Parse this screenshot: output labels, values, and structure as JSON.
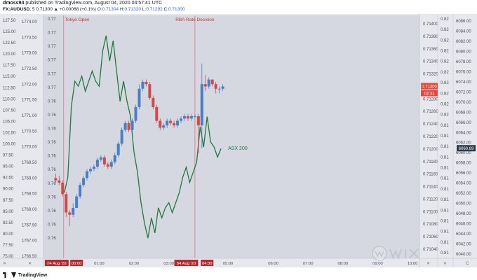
{
  "header": {
    "author": "dmoss94",
    "published_text": "published on TradingView.com, August 04, 2020 04:57:41 UTC",
    "symbol": "FX:AUDUSD",
    "interval": "5",
    "last": "0.71300",
    "change": "+0.00068 (+0.1%)",
    "o_label": "O:",
    "o_value": "0.71304",
    "h_label": "H:",
    "h_value": "0.71320",
    "l_label": "L:",
    "l_value": "0.71292",
    "c_label": "C:",
    "c_value": "0.71300"
  },
  "footer": {
    "logo_text": "TradingView"
  },
  "colors": {
    "plot_bg": "#d5d8e1",
    "axis_bg": "#e6e8ee",
    "up": "#4a7fc6",
    "down": "#cf4a4a",
    "asx_line": "#217a3a",
    "yen_line": "#1e8b3c",
    "event_line": "#e06a6a",
    "price_tag": "#e8473a",
    "asx_tag": "#2b3a4a"
  },
  "chart_data": {
    "type": "line",
    "title": "",
    "x_tick_labels": [
      "04 Aug '20",
      "00:00",
      "01:00",
      "02:00",
      "03:00",
      "04 Aug '20",
      "04:30",
      "05:00",
      "06:00",
      "07:00",
      "08:00",
      "09:00",
      "10:00"
    ],
    "event_labels": [
      "Tokyo Open",
      "RBA Rate Decision"
    ],
    "series_labels": [
      "ASX 200"
    ],
    "axes": {
      "far_left": {
        "ticks": [
          "127.50",
          "125.00",
          "122.50",
          "120.00",
          "117.50",
          "115.00",
          "112.50",
          "110.00",
          "107.50",
          "105.00",
          "102.50",
          "100.00",
          "97.50",
          "95.00",
          "92.50",
          "90.00",
          "87.50",
          "85.00",
          "82.50",
          "80.00",
          "77.50",
          "75.00"
        ],
        "range": [
          75.0,
          128.0
        ]
      },
      "left": {
        "ticks": [
          "1774.00",
          "1773.50",
          "1773.00",
          "1772.50",
          "1772.00",
          "1771.50",
          "1771.00",
          "1770.50",
          "1770.00",
          "1769.50",
          "1769.00",
          "1768.50",
          "1768.00",
          "1767.50",
          "1767.00",
          "1766.50"
        ],
        "range": [
          1766.3,
          1774.1
        ]
      },
      "inner": {
        "ticks": [
          "0.77",
          "0.77",
          "0.77",
          "0.77",
          "0.77",
          "0.77",
          "0.76",
          "0.76",
          "0.76",
          "0.76",
          "0.76",
          "0.76",
          "0.76",
          "0.76",
          "0.76",
          "0.76",
          "0.76"
        ]
      },
      "audusd": {
        "ticks": [
          "0.71400",
          "0.71380",
          "0.71360",
          "0.71340",
          "0.71320",
          "0.71300",
          "0.71280",
          "0.71260",
          "0.71240",
          "0.71220",
          "0.71200",
          "0.71180",
          "0.71160",
          "0.71140",
          "0.71120",
          "0.71100",
          "0.71080",
          "0.71060",
          "0.71040"
        ],
        "range": [
          0.7103,
          0.7141
        ],
        "last_tag": "0.71300",
        "countdown_tag": "02:31"
      },
      "mid": {
        "ticks": [
          "0.82",
          "0.82",
          "0.82",
          "0.82",
          "0.82",
          "0.82",
          "0.82",
          "0.82",
          "0.82",
          "0.82",
          "0.81",
          "0.81",
          "0.81",
          "0.81",
          "0.81",
          "0.81",
          "0.81",
          "0.81",
          "0.81",
          "0.81",
          "0.81",
          "0.81",
          "0.81"
        ]
      },
      "asx": {
        "ticks": [
          "6086.00",
          "6084.00",
          "6082.00",
          "6080.00",
          "6078.00",
          "6076.00",
          "6074.00",
          "6072.00",
          "6070.00",
          "6068.00",
          "6066.00",
          "6064.00",
          "6062.00",
          "6060.00",
          "6058.00",
          "6056.00",
          "6054.00",
          "6052.00",
          "6050.00",
          "6048.00",
          "6046.00",
          "6044.00",
          "6042.00",
          "6040.00"
        ],
        "range": [
          6039.0,
          6087.0
        ],
        "last_tag": "6060.69"
      }
    },
    "asx200": {
      "name": "ASX 200",
      "x_hours": [
        0.0,
        0.1,
        0.2,
        0.3,
        0.4,
        0.5,
        0.6,
        0.7,
        0.8,
        0.9,
        1.0,
        1.1,
        1.2,
        1.3,
        1.4,
        1.5,
        1.6,
        1.7,
        1.8,
        1.9,
        2.0,
        2.1,
        2.2,
        2.3,
        2.4,
        2.5,
        2.6,
        2.7,
        2.8,
        2.9,
        3.0,
        3.1,
        3.2,
        3.3,
        3.4,
        3.5,
        3.6,
        3.7,
        3.8,
        3.9,
        4.0,
        4.1,
        4.2,
        4.3,
        4.4,
        4.5
      ],
      "values": [
        6052,
        6055,
        6069,
        6074,
        6073,
        6075,
        6072,
        6074,
        6076,
        6074,
        6073,
        6080,
        6083,
        6078,
        6082,
        6076,
        6070,
        6074,
        6070,
        6067,
        6060,
        6056,
        6050,
        6046,
        6043,
        6047,
        6044,
        6049,
        6047,
        6049,
        6050,
        6048,
        6050,
        6052,
        6055,
        6057,
        6054,
        6056,
        6058,
        6065,
        6061,
        6067,
        6062,
        6061,
        6059,
        6060.69
      ]
    },
    "usdjpy_left_scale": {
      "x_hours": [
        -0.25,
        -0.15,
        -0.05,
        0.05,
        0.15,
        0.25,
        0.35,
        0.45,
        0.55,
        0.65,
        0.75,
        0.85,
        0.95,
        1.05,
        1.15,
        1.25,
        1.35,
        1.45,
        1.55,
        1.65,
        1.75,
        1.85,
        1.95,
        2.05,
        2.15,
        2.25,
        2.35,
        2.45,
        2.55,
        2.65,
        2.75,
        2.85,
        2.95,
        3.05,
        3.15,
        3.25,
        3.35,
        3.45,
        3.55,
        3.65,
        3.75,
        3.85,
        3.95,
        4.05,
        4.15,
        4.25,
        4.35,
        4.45,
        4.55
      ],
      "open": [
        92.5,
        92.0,
        91.5,
        89.0,
        85.0,
        84.5,
        86.0,
        88.5,
        91.0,
        92.5,
        94.0,
        94.5,
        95.0,
        96.5,
        97.0,
        95.5,
        95.0,
        96.0,
        97.5,
        100.0,
        103.0,
        104.5,
        103.0,
        105.0,
        108.0,
        112.0,
        113.5,
        113.0,
        110.0,
        108.0,
        105.0,
        103.5,
        104.0,
        105.0,
        104.5,
        104.0,
        105.0,
        105.5,
        106.0,
        105.5,
        106.0,
        106.0,
        104.0,
        113.0,
        112.5,
        114.0,
        113.0,
        112.0,
        112.0
      ],
      "close": [
        92.0,
        91.5,
        89.0,
        85.0,
        84.5,
        86.0,
        88.5,
        91.0,
        92.5,
        94.0,
        94.5,
        95.0,
        96.5,
        97.0,
        95.5,
        95.0,
        96.0,
        97.5,
        100.0,
        103.0,
        104.5,
        103.0,
        105.0,
        108.0,
        112.0,
        113.5,
        113.0,
        110.0,
        108.0,
        105.0,
        103.5,
        104.0,
        105.0,
        104.5,
        104.0,
        105.0,
        105.5,
        106.0,
        105.5,
        106.0,
        106.0,
        104.0,
        113.0,
        112.5,
        114.0,
        113.0,
        112.0,
        112.0,
        112.5
      ],
      "high": [
        93.5,
        93.0,
        92.0,
        89.5,
        85.5,
        87.0,
        89.0,
        91.5,
        93.0,
        94.5,
        95.0,
        95.5,
        97.0,
        97.5,
        97.5,
        96.0,
        96.5,
        98.0,
        100.5,
        103.5,
        105.0,
        105.0,
        105.5,
        108.5,
        113.0,
        114.0,
        114.0,
        113.5,
        110.5,
        108.5,
        105.5,
        104.5,
        105.5,
        105.5,
        105.0,
        105.5,
        106.0,
        106.5,
        106.5,
        106.5,
        106.5,
        106.5,
        117.5,
        115.0,
        114.5,
        114.0,
        113.5,
        112.5,
        113.0
      ],
      "low": [
        91.5,
        91.0,
        88.5,
        84.0,
        82.0,
        84.0,
        86.0,
        88.0,
        90.5,
        92.0,
        93.5,
        94.0,
        94.5,
        96.0,
        95.0,
        94.5,
        94.5,
        95.5,
        97.0,
        99.5,
        102.5,
        102.5,
        102.5,
        104.5,
        107.5,
        111.5,
        112.5,
        109.5,
        107.5,
        104.5,
        103.0,
        103.0,
        103.5,
        104.0,
        103.5,
        103.5,
        104.5,
        105.0,
        105.0,
        105.0,
        105.5,
        98.0,
        99.0,
        111.5,
        112.0,
        112.5,
        111.0,
        111.0,
        111.5
      ]
    }
  }
}
